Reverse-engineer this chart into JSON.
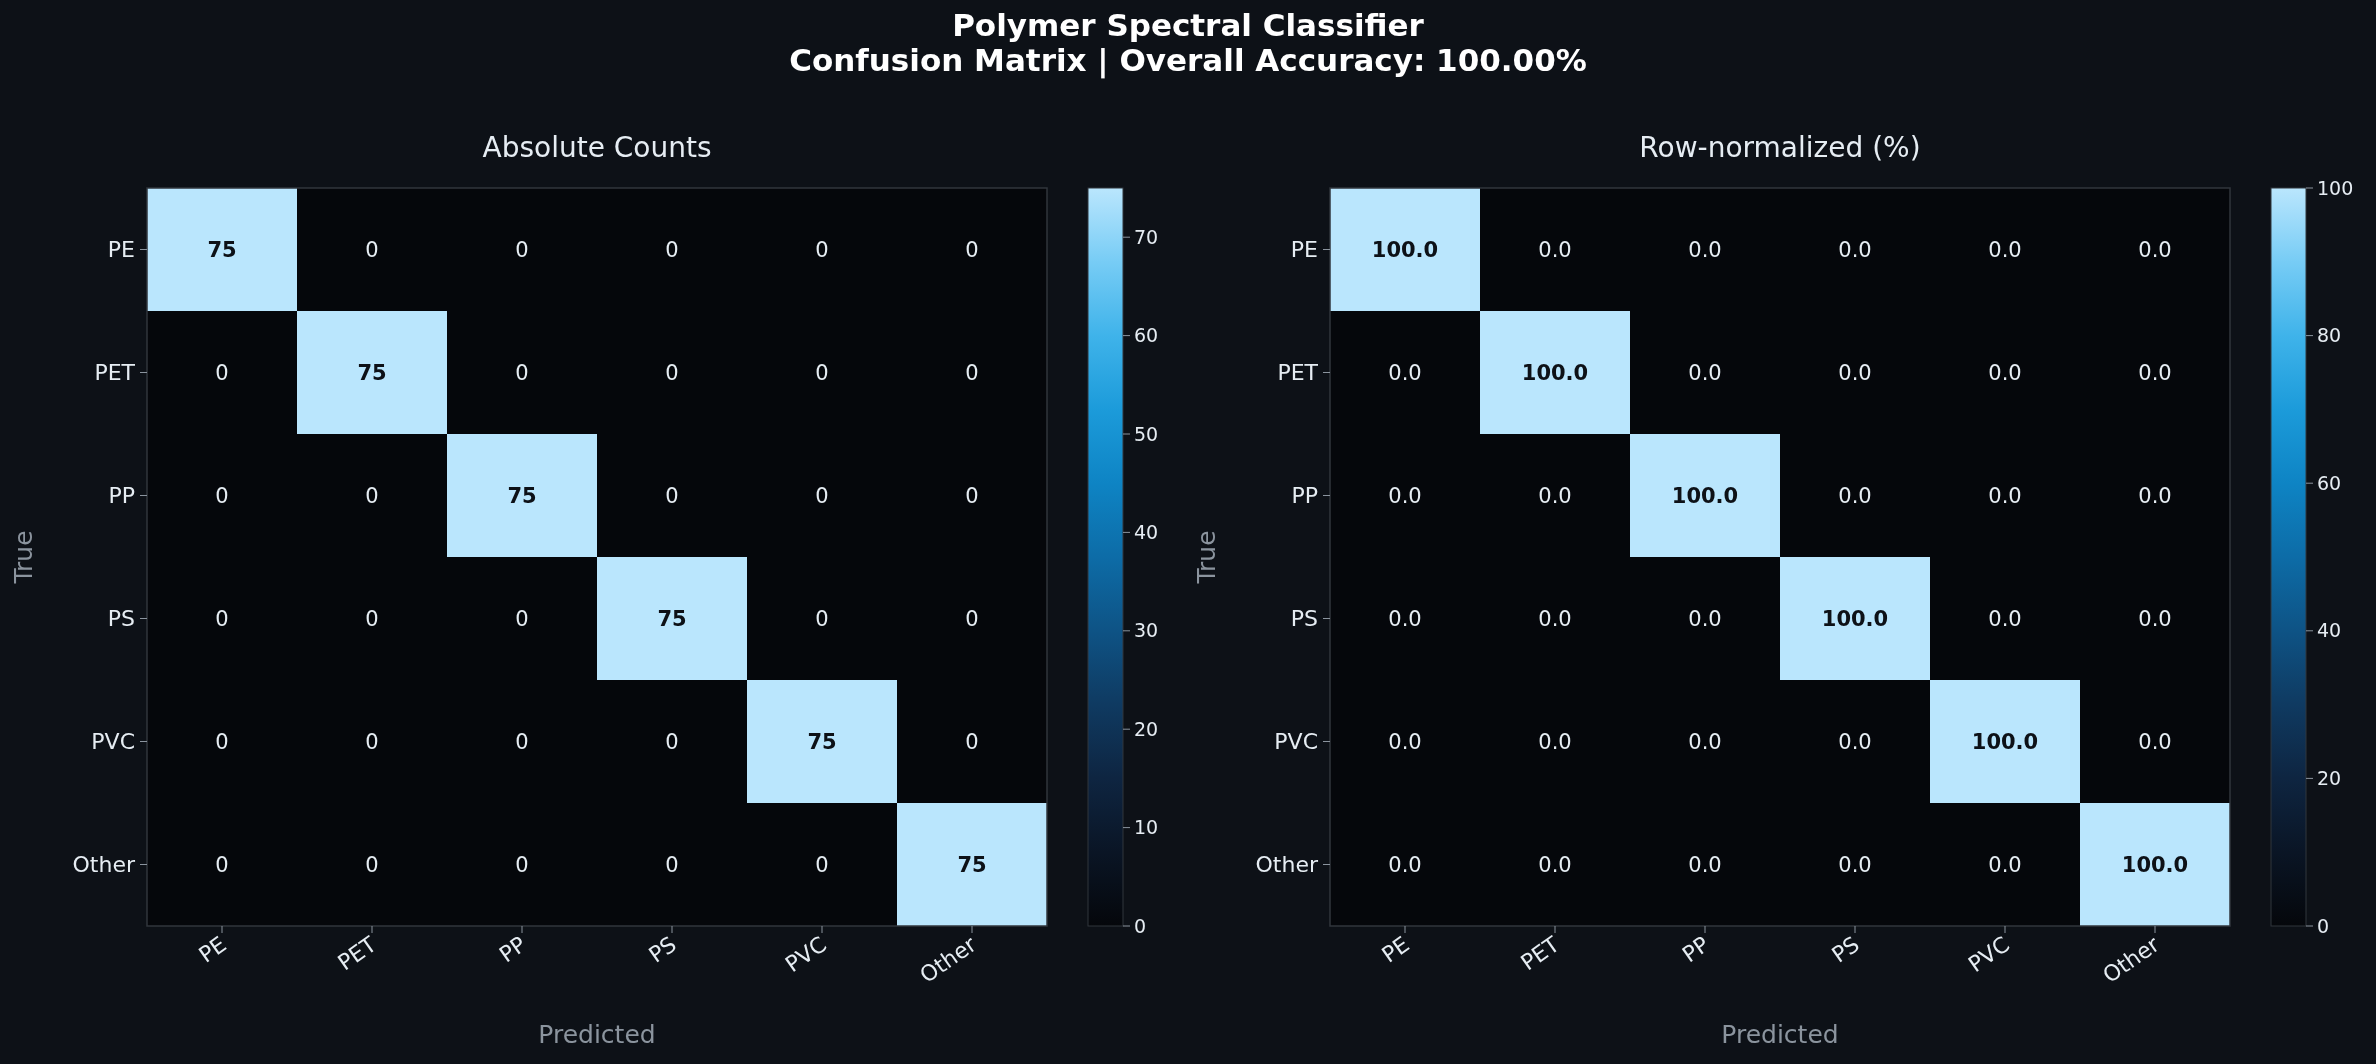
{
  "chart_data": [
    {
      "type": "heatmap",
      "title": "Absolute Counts",
      "annotations": [
        "Polymer Spectral Classifier",
        "Confusion Matrix  |  Overall Accuracy: 100.00%"
      ],
      "xlabel": "Predicted",
      "ylabel": "True",
      "categories": [
        "PE",
        "PET",
        "PP",
        "PS",
        "PVC",
        "Other"
      ],
      "y_categories": [
        "PE",
        "PET",
        "PP",
        "PS",
        "PVC",
        "Other"
      ],
      "cells": [
        [
          75,
          0,
          0,
          0,
          0,
          0
        ],
        [
          0,
          75,
          0,
          0,
          0,
          0
        ],
        [
          0,
          0,
          75,
          0,
          0,
          0
        ],
        [
          0,
          0,
          0,
          75,
          0,
          0
        ],
        [
          0,
          0,
          0,
          0,
          75,
          0
        ],
        [
          0,
          0,
          0,
          0,
          0,
          75
        ]
      ],
      "data_labels": true,
      "clim": [
        0,
        75
      ],
      "cticks": [
        0,
        10,
        20,
        30,
        40,
        50,
        60,
        70
      ]
    },
    {
      "type": "heatmap",
      "title": "Row-normalized (%)",
      "xlabel": "Predicted",
      "ylabel": "True",
      "categories": [
        "PE",
        "PET",
        "PP",
        "PS",
        "PVC",
        "Other"
      ],
      "y_categories": [
        "PE",
        "PET",
        "PP",
        "PS",
        "PVC",
        "Other"
      ],
      "cells": [
        [
          100,
          0,
          0,
          0,
          0,
          0
        ],
        [
          0,
          100,
          0,
          0,
          0,
          0
        ],
        [
          0,
          0,
          100,
          0,
          0,
          0
        ],
        [
          0,
          0,
          0,
          100,
          0,
          0
        ],
        [
          0,
          0,
          0,
          0,
          100,
          0
        ],
        [
          0,
          0,
          0,
          0,
          0,
          100
        ]
      ],
      "cell_labels": [
        [
          "100.0",
          "0.0",
          "0.0",
          "0.0",
          "0.0",
          "0.0"
        ],
        [
          "0.0",
          "100.0",
          "0.0",
          "0.0",
          "0.0",
          "0.0"
        ],
        [
          "0.0",
          "0.0",
          "100.0",
          "0.0",
          "0.0",
          "0.0"
        ],
        [
          "0.0",
          "0.0",
          "0.0",
          "100.0",
          "0.0",
          "0.0"
        ],
        [
          "0.0",
          "0.0",
          "0.0",
          "0.0",
          "100.0",
          "0.0"
        ],
        [
          "0.0",
          "0.0",
          "0.0",
          "0.0",
          "0.0",
          "100.0"
        ]
      ],
      "clim": [
        0,
        100
      ],
      "cticks": [
        0,
        20,
        40,
        60,
        80,
        100
      ]
    }
  ]
}
